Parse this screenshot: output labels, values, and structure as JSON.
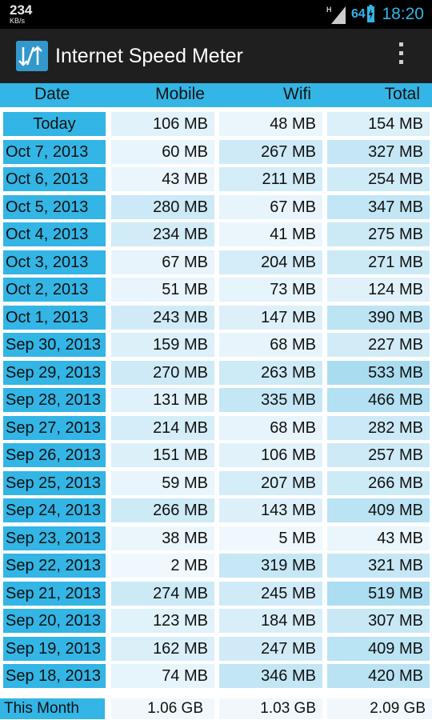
{
  "status_bar": {
    "speed": "234",
    "speed_unit": "KB/s",
    "network_type": "H",
    "battery": "64",
    "time": "18:20"
  },
  "action_bar": {
    "title": "Internet Speed Meter",
    "icon": "up-down-arrows-icon",
    "menu_icon": "overflow-menu-icon"
  },
  "table": {
    "headers": {
      "date": "Date",
      "mobile": "Mobile",
      "wifi": "Wifi",
      "total": "Total"
    },
    "rows": [
      {
        "date": "Today",
        "mobile": "106 MB",
        "wifi": "48 MB",
        "total": "154 MB"
      },
      {
        "date": "Oct 7, 2013",
        "mobile": "60 MB",
        "wifi": "267 MB",
        "total": "327 MB"
      },
      {
        "date": "Oct 6, 2013",
        "mobile": "43 MB",
        "wifi": "211 MB",
        "total": "254 MB"
      },
      {
        "date": "Oct 5, 2013",
        "mobile": "280 MB",
        "wifi": "67 MB",
        "total": "347 MB"
      },
      {
        "date": "Oct 4, 2013",
        "mobile": "234 MB",
        "wifi": "41 MB",
        "total": "275 MB"
      },
      {
        "date": "Oct 3, 2013",
        "mobile": "67 MB",
        "wifi": "204 MB",
        "total": "271 MB"
      },
      {
        "date": "Oct 2, 2013",
        "mobile": "51 MB",
        "wifi": "73 MB",
        "total": "124 MB"
      },
      {
        "date": "Oct 1, 2013",
        "mobile": "243 MB",
        "wifi": "147 MB",
        "total": "390 MB"
      },
      {
        "date": "Sep 30, 2013",
        "mobile": "159 MB",
        "wifi": "68 MB",
        "total": "227 MB"
      },
      {
        "date": "Sep 29, 2013",
        "mobile": "270 MB",
        "wifi": "263 MB",
        "total": "533 MB"
      },
      {
        "date": "Sep 28, 2013",
        "mobile": "131 MB",
        "wifi": "335 MB",
        "total": "466 MB"
      },
      {
        "date": "Sep 27, 2013",
        "mobile": "214 MB",
        "wifi": "68 MB",
        "total": "282 MB"
      },
      {
        "date": "Sep 26, 2013",
        "mobile": "151 MB",
        "wifi": "106 MB",
        "total": "257 MB"
      },
      {
        "date": "Sep 25, 2013",
        "mobile": "59 MB",
        "wifi": "207 MB",
        "total": "266 MB"
      },
      {
        "date": "Sep 24, 2013",
        "mobile": "266 MB",
        "wifi": "143 MB",
        "total": "409 MB"
      },
      {
        "date": "Sep 23, 2013",
        "mobile": "38 MB",
        "wifi": "5 MB",
        "total": "43 MB"
      },
      {
        "date": "Sep 22, 2013",
        "mobile": "2 MB",
        "wifi": "319 MB",
        "total": "321 MB"
      },
      {
        "date": "Sep 21, 2013",
        "mobile": "274 MB",
        "wifi": "245 MB",
        "total": "519 MB"
      },
      {
        "date": "Sep 20, 2013",
        "mobile": "123 MB",
        "wifi": "184 MB",
        "total": "307 MB"
      },
      {
        "date": "Sep 19, 2013",
        "mobile": "162 MB",
        "wifi": "247 MB",
        "total": "409 MB"
      },
      {
        "date": "Sep 18, 2013",
        "mobile": "74 MB",
        "wifi": "346 MB",
        "total": "420 MB"
      }
    ]
  },
  "summary": {
    "label": "This Month",
    "mobile": "1.06 GB",
    "wifi": "1.03 GB",
    "total": "2.09 GB"
  },
  "colors": {
    "accent": "#33b5e5",
    "action_bar": "#1f1f1f",
    "status_bar": "#000000"
  }
}
